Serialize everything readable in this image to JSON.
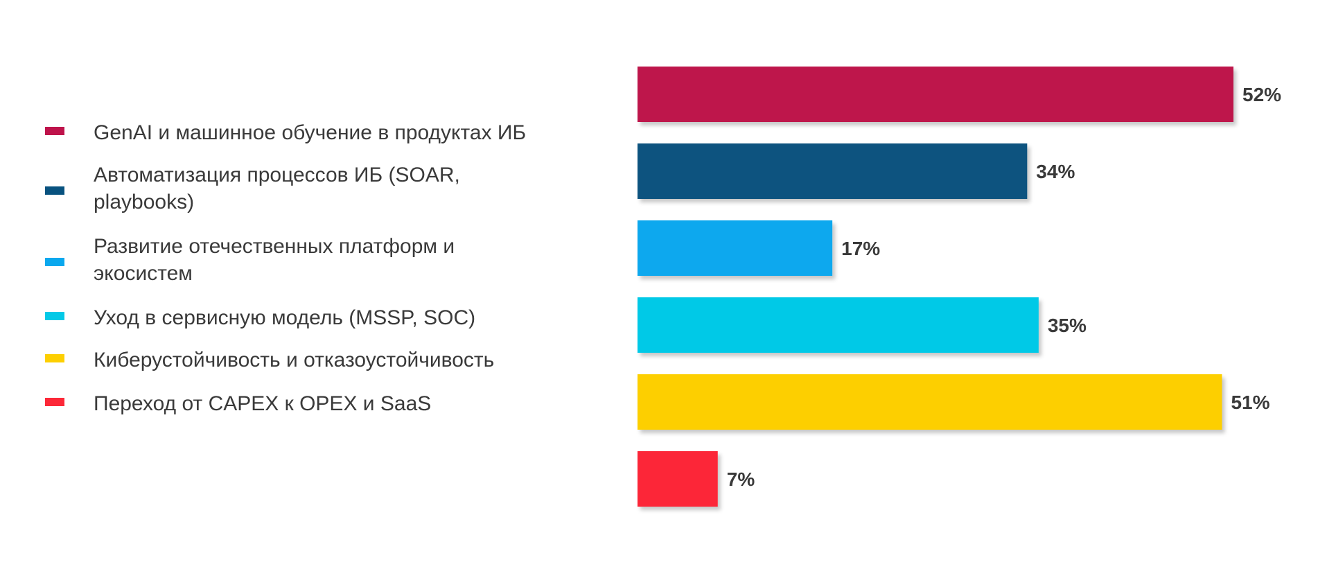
{
  "chart_data": {
    "type": "bar",
    "orientation": "horizontal",
    "categories": [
      "GenAI и машинное обучение в продуктах ИБ",
      "Автоматизация процессов ИБ (SOAR, playbooks)",
      "Развитие отечественных платформ и экосистем",
      "Уход в сервисную модель (MSSP, SOC)",
      "Киберустойчивость и отказоустойчивость",
      "Переход от CAPEX к OPEX и SaaS"
    ],
    "values": [
      52,
      34,
      17,
      35,
      51,
      7
    ],
    "value_labels": [
      "52%",
      "34%",
      "17%",
      "35%",
      "51%",
      "7%"
    ],
    "colors": [
      "#BE134B",
      "#08527F",
      "#0AA8EE",
      "#03C9E7",
      "#FDCF01",
      "#FC2838"
    ],
    "value_unit": "%",
    "xlim": [
      0,
      52
    ],
    "grid": false,
    "legend_position": "left"
  },
  "legend": {
    "items": [
      {
        "lines": [
          "GenAI и машинное обучение в продуктах ИБ"
        ]
      },
      {
        "lines": [
          "Автоматизация процессов ИБ (SOAR,",
          "playbooks)"
        ]
      },
      {
        "lines": [
          "Развитие отечественных платформ и",
          "экосистем"
        ]
      },
      {
        "lines": [
          "Уход в сервисную модель (MSSP, SOC)"
        ]
      },
      {
        "lines": [
          "Киберустойчивость и отказоустойчивость"
        ]
      },
      {
        "lines": [
          "Переход от CAPEX к OPEX и SaaS"
        ]
      }
    ]
  }
}
